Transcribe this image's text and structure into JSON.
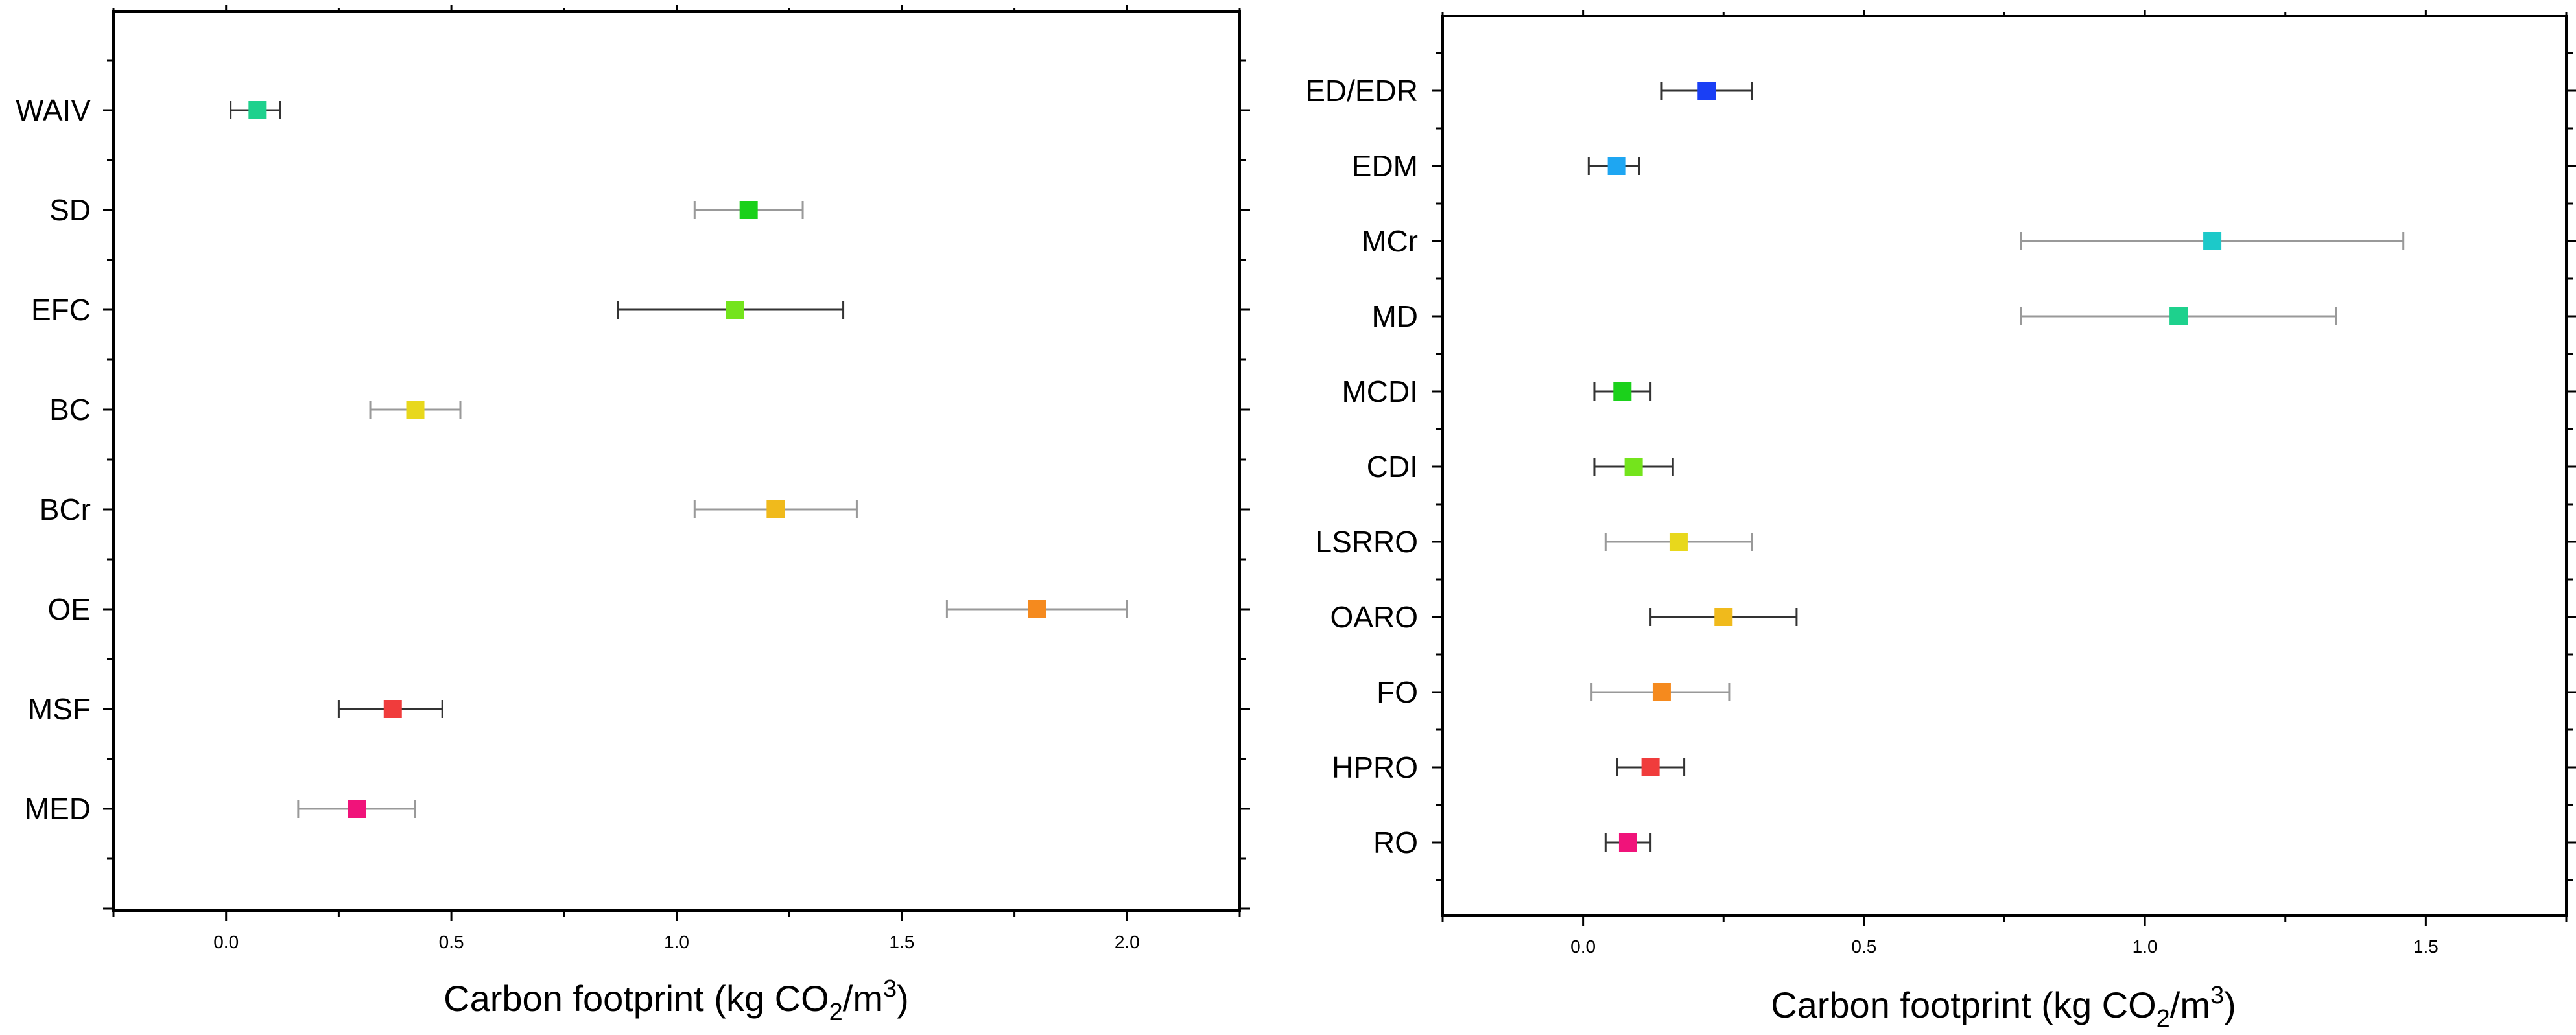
{
  "chart_data": [
    {
      "type": "scatter",
      "orientation": "horizontal",
      "xlabel": "Carbon footprint (kg CO2/m3)",
      "xlabel_parts": {
        "pre": "Carbon footprint (kg CO",
        "sub": "2",
        "mid": "/m",
        "sup": "3",
        "post": ")"
      },
      "xlim": [
        -0.25,
        2.25
      ],
      "xticks": [
        0.0,
        0.5,
        1.0,
        1.5,
        2.0
      ],
      "xtick_labels": [
        "0.0",
        "0.5",
        "1.0",
        "1.5",
        "2.0"
      ],
      "categories": [
        "WAIV",
        "SD",
        "EFC",
        "BC",
        "BCr",
        "OE",
        "MSF",
        "MED"
      ],
      "values": [
        0.07,
        1.16,
        1.13,
        0.42,
        1.22,
        1.8,
        0.37,
        0.29
      ],
      "err_low": [
        0.01,
        1.04,
        0.87,
        0.32,
        1.04,
        1.6,
        0.25,
        0.16
      ],
      "err_high": [
        0.12,
        1.28,
        1.37,
        0.52,
        1.4,
        2.0,
        0.48,
        0.42
      ],
      "colors": [
        "#1ed18d",
        "#1bd11b",
        "#74e41c",
        "#e8d81c",
        "#f0ba1c",
        "#f58a1e",
        "#f03c3c",
        "#f0137a"
      ],
      "err_colors": [
        "#333333",
        "#999999",
        "#333333",
        "#999999",
        "#999999",
        "#999999",
        "#333333",
        "#999999"
      ]
    },
    {
      "type": "scatter",
      "orientation": "horizontal",
      "xlabel": "Carbon footprint (kg CO2/m3)",
      "xlabel_parts": {
        "pre": "Carbon footprint (kg CO",
        "sub": "2",
        "mid": "/m",
        "sup": "3",
        "post": ")"
      },
      "xlim": [
        -0.25,
        1.75
      ],
      "xticks": [
        0.0,
        0.5,
        1.0,
        1.5
      ],
      "xtick_labels": [
        "0.0",
        "0.5",
        "1.0",
        "1.5"
      ],
      "categories": [
        "ED/EDR",
        "EDM",
        "MCr",
        "MD",
        "MCDI",
        "CDI",
        "LSRRO",
        "OARO",
        "FO",
        "HPRO",
        "RO"
      ],
      "values": [
        0.22,
        0.06,
        1.12,
        1.06,
        0.07,
        0.09,
        0.17,
        0.25,
        0.14,
        0.12,
        0.08
      ],
      "err_low": [
        0.14,
        0.01,
        0.78,
        0.78,
        0.02,
        0.02,
        0.04,
        0.12,
        0.015,
        0.06,
        0.04
      ],
      "err_high": [
        0.3,
        0.1,
        1.46,
        1.34,
        0.12,
        0.16,
        0.3,
        0.38,
        0.26,
        0.18,
        0.12
      ],
      "colors": [
        "#1a3ff5",
        "#1ea6f2",
        "#1cc9c9",
        "#1ed18d",
        "#1bd11b",
        "#74e41c",
        "#e8d81c",
        "#f0ba1c",
        "#f58a1e",
        "#f03c3c",
        "#f0137a"
      ],
      "err_colors": [
        "#333333",
        "#333333",
        "#999999",
        "#999999",
        "#333333",
        "#333333",
        "#999999",
        "#333333",
        "#999999",
        "#333333",
        "#333333"
      ]
    }
  ]
}
